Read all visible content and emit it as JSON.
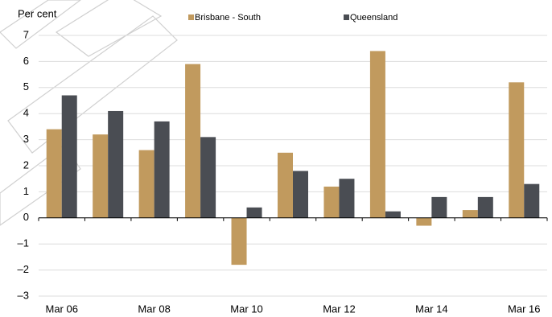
{
  "chart_data": {
    "type": "bar",
    "y_label": "Per cent",
    "categories": [
      "Mar 06",
      null,
      "Mar 08",
      null,
      "Mar 10",
      null,
      "Mar 12",
      null,
      "Mar 14",
      null,
      "Mar 16"
    ],
    "series": [
      {
        "name": "Brisbane - South",
        "color": "#c19a5e",
        "values": [
          3.4,
          3.2,
          2.6,
          5.9,
          -1.8,
          2.5,
          1.2,
          6.4,
          -0.3,
          0.3,
          5.2
        ]
      },
      {
        "name": "Queensland",
        "color": "#4a4d53",
        "values": [
          4.7,
          4.1,
          3.7,
          3.1,
          0.4,
          1.8,
          1.5,
          0.25,
          0.8,
          0.8,
          1.3
        ]
      }
    ],
    "ylim": [
      -3,
      7
    ],
    "yticks": [
      {
        "value": -3,
        "label": "–3"
      },
      {
        "value": -2,
        "label": "–2"
      },
      {
        "value": -1,
        "label": "–1"
      },
      0,
      1,
      2,
      3,
      4,
      5,
      6,
      7
    ],
    "grid": true,
    "legend": "top"
  }
}
